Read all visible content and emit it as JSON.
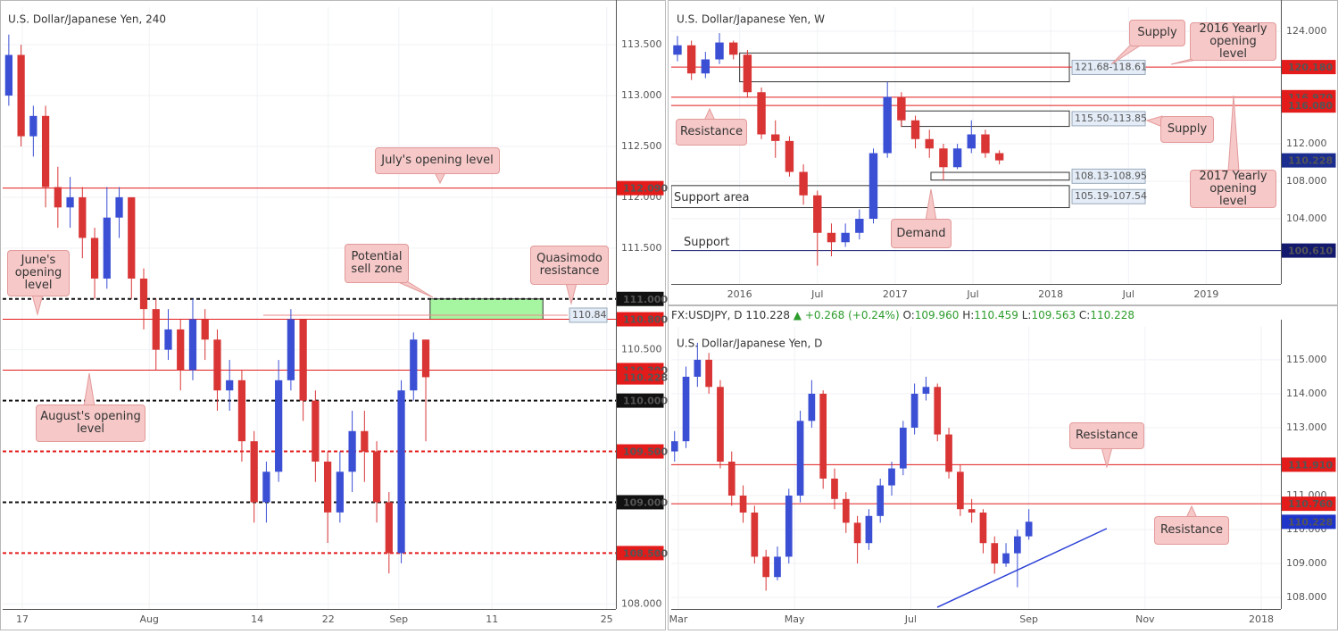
{
  "chart_data": [
    {
      "type": "candlestick",
      "title": "U.S. Dollar/Japanese Yen, 240",
      "up_color": "#3a4fd4",
      "down_color": "#d93535",
      "grid": true,
      "x": [
        1,
        3,
        5,
        7,
        9,
        11,
        13,
        15,
        17,
        19,
        21,
        23,
        25,
        27,
        29,
        31,
        33,
        35,
        37,
        39,
        41,
        43,
        45,
        47,
        49,
        51,
        53,
        55,
        57,
        59,
        61,
        63,
        65,
        67,
        69
      ],
      "open": [
        113.0,
        113.4,
        112.6,
        112.8,
        112.1,
        111.9,
        112.0,
        111.6,
        111.2,
        111.8,
        112.0,
        111.2,
        110.9,
        110.5,
        110.7,
        110.3,
        110.8,
        110.6,
        110.1,
        110.2,
        109.6,
        109.0,
        109.3,
        110.2,
        110.8,
        110.0,
        109.4,
        108.9,
        109.3,
        109.7,
        109.5,
        109.0,
        108.5,
        110.1,
        110.6
      ],
      "high": [
        113.6,
        113.5,
        112.9,
        112.9,
        112.3,
        112.2,
        112.1,
        111.7,
        112.1,
        112.1,
        112.0,
        111.3,
        111.0,
        110.9,
        110.8,
        111.0,
        110.9,
        110.7,
        110.4,
        110.3,
        109.7,
        109.4,
        110.4,
        110.9,
        110.8,
        110.1,
        109.5,
        109.5,
        109.9,
        109.9,
        109.6,
        109.1,
        110.2,
        110.67,
        110.6
      ],
      "low": [
        112.9,
        112.5,
        112.4,
        111.9,
        111.7,
        111.7,
        111.4,
        111.0,
        111.1,
        111.6,
        111.0,
        110.7,
        110.3,
        110.4,
        110.1,
        110.2,
        110.4,
        109.9,
        109.9,
        109.4,
        108.8,
        108.8,
        109.2,
        110.1,
        109.8,
        109.2,
        108.6,
        108.8,
        109.1,
        109.2,
        108.8,
        108.3,
        108.4,
        110.0,
        109.6
      ],
      "close": [
        113.4,
        112.6,
        112.8,
        112.1,
        111.9,
        112.0,
        111.6,
        111.2,
        111.8,
        112.0,
        111.2,
        110.9,
        110.5,
        110.7,
        110.3,
        110.8,
        110.6,
        110.1,
        110.2,
        109.6,
        109.0,
        109.3,
        110.2,
        110.8,
        110.0,
        109.4,
        108.9,
        109.3,
        109.7,
        109.5,
        109.0,
        108.5,
        110.1,
        110.6,
        110.23
      ],
      "xlim": [
        0,
        100
      ],
      "xticks": [
        {
          "value": 3.2,
          "label": "17"
        },
        {
          "value": 23.9,
          "label": "Aug"
        },
        {
          "value": 41.5,
          "label": "14"
        },
        {
          "value": 53.1,
          "label": "22"
        },
        {
          "value": 64.6,
          "label": "Sep"
        },
        {
          "value": 79.8,
          "label": "11"
        },
        {
          "value": 98.5,
          "label": "25"
        }
      ],
      "ylim": [
        107.95,
        113.87
      ],
      "yticks": [
        {
          "value": 108,
          "label": "108.000"
        },
        {
          "value": 110.5,
          "label": "110.500"
        },
        {
          "value": 111.5,
          "label": "111.500"
        },
        {
          "value": 112,
          "label": "112.000"
        },
        {
          "value": 112.5,
          "label": "112.500"
        },
        {
          "value": 113,
          "label": "113.000"
        },
        {
          "value": 113.5,
          "label": "113.500"
        }
      ],
      "levels": [
        {
          "value": 112.09,
          "label": "112.090",
          "color": "#e31b1b",
          "dash": false,
          "line": true
        },
        {
          "value": 111,
          "label": "111.000",
          "color": "#111111",
          "dash": true,
          "line": true
        },
        {
          "value": 110.8,
          "label": "110.800",
          "color": "#e31b1b",
          "dash": false,
          "line": true
        },
        {
          "value": 110.3,
          "label": "110.300",
          "color": "#e31b1b",
          "dash": false,
          "line": true
        },
        {
          "value": 110.228,
          "color": "#e31b1b",
          "dash": false,
          "line": false
        },
        {
          "value": 110,
          "label": "110.000",
          "color": "#111111",
          "dash": true,
          "line": true
        },
        {
          "value": 109.5,
          "label": "109.500",
          "color": "#e31b1b",
          "dash": true,
          "line": true
        },
        {
          "value": 109,
          "label": "109.000",
          "color": "#111111",
          "dash": true,
          "line": true
        },
        {
          "value": 108.5,
          "label": "108.500",
          "color": "#e31b1b",
          "dash": true,
          "line": true
        }
      ],
      "zones": [
        {
          "from": 110.8,
          "to": 111.0,
          "x_start": 69.7,
          "x_end": 88.1,
          "color": "#a6f5a0"
        }
      ],
      "price_tags": [
        {
          "value": 110.84,
          "x_start": 42.5
        }
      ],
      "annotations": [
        "July's opening level",
        "June's opening level",
        "Potential sell zone",
        "Quasimodo resistance",
        "August's opening level"
      ]
    },
    {
      "type": "candlestick",
      "title": "U.S. Dollar/Japanese Yen, W",
      "up_color": "#3a4fd4",
      "down_color": "#d93535",
      "grid": true,
      "x": [
        2015.6,
        2015.69,
        2015.78,
        2015.87,
        2015.96,
        2016.05,
        2016.14,
        2016.23,
        2016.32,
        2016.41,
        2016.5,
        2016.59,
        2016.68,
        2016.77,
        2016.86,
        2016.95,
        2017.04,
        2017.13,
        2017.22,
        2017.31,
        2017.4,
        2017.49,
        2017.58,
        2017.67
      ],
      "open": [
        121.5,
        122.5,
        119.5,
        121.0,
        122.8,
        121.5,
        117.5,
        113.0,
        112.3,
        109.0,
        106.5,
        102.5,
        101.5,
        102.5,
        104.0,
        111.0,
        117.0,
        114.5,
        112.5,
        111.5,
        109.5,
        111.5,
        113.0,
        111.0
      ],
      "high": [
        123.5,
        123.0,
        121.8,
        123.8,
        123.0,
        122.0,
        118.0,
        114.5,
        112.8,
        109.8,
        107.0,
        103.5,
        103.5,
        105.0,
        111.5,
        118.6,
        117.5,
        115.0,
        113.5,
        112.0,
        112.0,
        114.5,
        113.5,
        111.3
      ],
      "low": [
        120.8,
        118.8,
        119.0,
        120.5,
        121.0,
        117.0,
        112.5,
        110.5,
        108.5,
        105.5,
        99.0,
        100.0,
        101.0,
        101.8,
        103.5,
        110.5,
        113.8,
        111.5,
        110.5,
        108.1,
        109.3,
        111.0,
        110.5,
        109.8
      ],
      "close": [
        122.5,
        119.5,
        121.0,
        122.8,
        121.5,
        117.5,
        113.0,
        112.3,
        109.0,
        106.5,
        102.5,
        101.5,
        102.5,
        104.0,
        111.0,
        117.0,
        114.5,
        112.5,
        111.5,
        109.5,
        111.5,
        113.0,
        111.0,
        110.23
      ],
      "xlim": [
        2015.56,
        2019.48
      ],
      "xticks": [
        {
          "value": 2016,
          "label": "2016"
        },
        {
          "value": 2016.5,
          "label": "Jul"
        },
        {
          "value": 2017,
          "label": "2017"
        },
        {
          "value": 2017.5,
          "label": "Jul"
        },
        {
          "value": 2018,
          "label": "2018"
        },
        {
          "value": 2018.5,
          "label": "Jul"
        },
        {
          "value": 2019,
          "label": "2019"
        }
      ],
      "ylim": [
        97.05,
        126.57
      ],
      "yticks": [
        {
          "value": 104,
          "label": "104.000"
        },
        {
          "value": 108,
          "label": "108.000"
        },
        {
          "value": 112,
          "label": "112.000"
        },
        {
          "value": 124,
          "label": "124.000"
        }
      ],
      "levels": [
        {
          "value": 120.18,
          "label": "120.180",
          "color": "#e31b1b",
          "dash": false,
          "line": true
        },
        {
          "value": 116.97,
          "label": "116.970",
          "color": "#e31b1b",
          "dash": false,
          "line": true
        },
        {
          "value": 116.08,
          "label": "116.080",
          "color": "#e31b1b",
          "dash": false,
          "line": true
        },
        {
          "value": 110.228,
          "color": "#1b2d8f",
          "dash": false,
          "line": false
        },
        {
          "value": 100.61,
          "label": "100.610",
          "color": "#131a6e",
          "dash": false,
          "line": true
        }
      ],
      "zones": [
        {
          "from": 121.68,
          "to": 118.61,
          "x_start": 2016.0,
          "x_end": 2018.12,
          "label": "121.68-118.61"
        },
        {
          "from": 115.5,
          "to": 113.85,
          "x_start": 2017.04,
          "x_end": 2018.12,
          "label": "115.50-113.85"
        },
        {
          "from": 108.13,
          "to": 108.95,
          "x_start": 2017.23,
          "x_end": 2018.12,
          "label": "108.13-108.95"
        },
        {
          "from": 105.19,
          "to": 107.54,
          "x_start": 2015.56,
          "x_end": 2018.12,
          "label": "105.19-107.54"
        }
      ],
      "annotations": [
        "Supply",
        "2016 Yearly opening level",
        "Resistance",
        "Supply",
        "2017 Yearly opening level",
        "Support area",
        "Support",
        "Demand"
      ]
    },
    {
      "type": "candlestick",
      "title": "U.S. Dollar/Japanese Yen, D",
      "up_color": "#3a4fd4",
      "down_color": "#d93535",
      "grid": true,
      "info_bar": {
        "symbol": "FX:USDJPY, D",
        "last": "110.228",
        "change": "+0.268",
        "change_pct": "(+0.24%)",
        "ohlc": [
          [
            "O:",
            "109.960"
          ],
          [
            "H:",
            "110.459"
          ],
          [
            "L:",
            "109.563"
          ],
          [
            "C:",
            "110.228"
          ]
        ]
      },
      "x": [
        57,
        63,
        69,
        75,
        81,
        87,
        93,
        99,
        105,
        111,
        117,
        123,
        129,
        135,
        141,
        147,
        153,
        159,
        165,
        171,
        177,
        183,
        189,
        195,
        201,
        207,
        213,
        219,
        225,
        231,
        237,
        243
      ],
      "open": [
        112.3,
        112.6,
        114.5,
        115.0,
        114.2,
        112.0,
        111.0,
        110.5,
        109.2,
        108.6,
        109.2,
        111.0,
        113.2,
        114.0,
        111.5,
        110.9,
        110.2,
        109.6,
        110.4,
        111.3,
        111.8,
        113.0,
        114.0,
        114.2,
        112.8,
        111.7,
        110.6,
        110.5,
        109.6,
        109.0,
        109.3,
        109.8
      ],
      "high": [
        112.9,
        114.8,
        115.5,
        115.2,
        114.4,
        112.3,
        111.3,
        110.7,
        109.4,
        109.5,
        111.2,
        113.5,
        114.4,
        114.1,
        111.8,
        111.1,
        110.4,
        110.6,
        111.5,
        112.0,
        113.2,
        114.3,
        114.5,
        114.3,
        113.0,
        111.9,
        110.9,
        110.6,
        109.8,
        109.6,
        110.0,
        110.6
      ],
      "low": [
        112.0,
        112.4,
        114.2,
        114.0,
        111.8,
        110.7,
        110.2,
        109.0,
        108.2,
        108.5,
        109.0,
        110.8,
        113.0,
        111.2,
        110.6,
        109.9,
        109.0,
        109.4,
        110.2,
        111.0,
        111.6,
        112.8,
        113.8,
        112.6,
        111.5,
        110.4,
        110.2,
        109.3,
        108.7,
        108.9,
        108.3,
        109.7
      ],
      "close": [
        112.6,
        114.5,
        115.0,
        114.2,
        112.0,
        111.0,
        110.5,
        109.2,
        108.6,
        109.2,
        111.0,
        113.2,
        114.0,
        111.5,
        110.9,
        110.2,
        109.6,
        110.4,
        111.3,
        111.8,
        113.0,
        114.0,
        114.2,
        112.8,
        111.7,
        110.6,
        110.5,
        109.6,
        109.0,
        109.3,
        109.8,
        110.23
      ],
      "xlim": [
        55.25,
        375.3
      ],
      "xticks": [
        {
          "value": 59,
          "label": "Mar"
        },
        {
          "value": 120,
          "label": "May"
        },
        {
          "value": 181,
          "label": "Jul"
        },
        {
          "value": 243,
          "label": "Sep"
        },
        {
          "value": 304,
          "label": "Nov"
        },
        {
          "value": 365,
          "label": "2018"
        }
      ],
      "ylim": [
        107.66,
        115.97
      ],
      "yticks": [
        {
          "value": 108,
          "label": "108.000"
        },
        {
          "value": 109,
          "label": "109.000"
        },
        {
          "value": 110,
          "label": "110.000"
        },
        {
          "value": 111,
          "label": "111.000"
        },
        {
          "value": 113,
          "label": "113.000"
        },
        {
          "value": 114,
          "label": "114.000"
        },
        {
          "value": 115,
          "label": "115.000"
        }
      ],
      "levels": [
        {
          "value": 111.91,
          "label": "111.910",
          "color": "#e31b1b",
          "dash": false,
          "line": true
        },
        {
          "value": 110.76,
          "label": "110.760",
          "color": "#e31b1b",
          "dash": false,
          "line": true
        },
        {
          "value": 110.228,
          "color": "#1f35c9",
          "dash": false,
          "line": false
        }
      ],
      "trendline": {
        "x": [
          194.9,
          283.9
        ],
        "y": [
          107.71,
          110.03
        ],
        "color": "#2b3fd6"
      },
      "annotations": [
        "Resistance",
        "Resistance"
      ]
    }
  ]
}
